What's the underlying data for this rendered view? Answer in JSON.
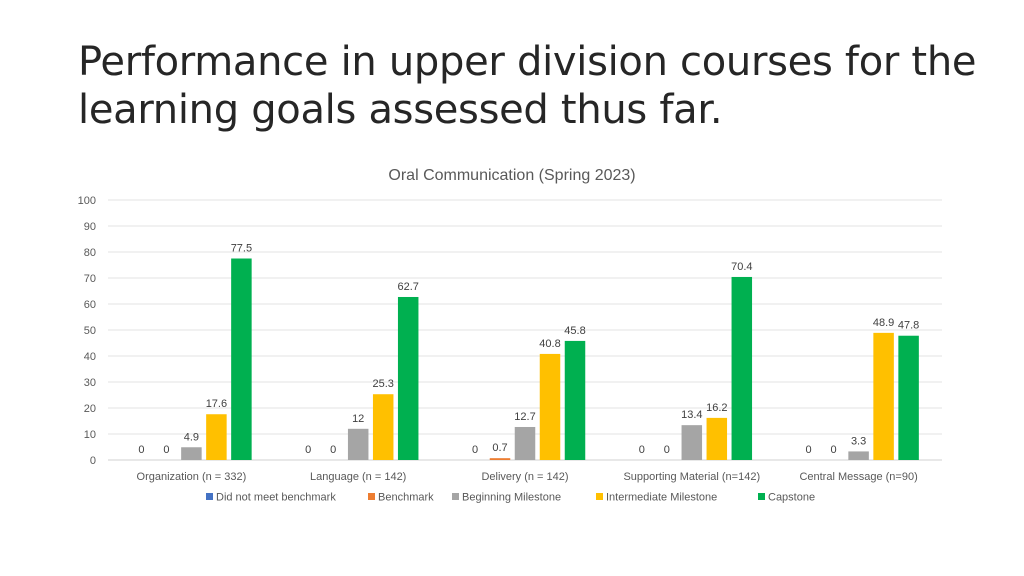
{
  "slide": {
    "title_line1": "Performance in upper division courses for the",
    "title_line2": "learning goals assessed thus far."
  },
  "chart_data": {
    "type": "bar",
    "title": "Oral Communication (Spring 2023)",
    "xlabel": "",
    "ylabel": "",
    "ylim": [
      0,
      100
    ],
    "yticks": [
      0,
      10,
      20,
      30,
      40,
      50,
      60,
      70,
      80,
      90,
      100
    ],
    "grid": true,
    "legend_position": "bottom",
    "categories": [
      "Organization (n = 332)",
      "Language (n = 142)",
      "Delivery (n = 142)",
      "Supporting Material (n=142)",
      "Central Message (n=90)"
    ],
    "series": [
      {
        "name": "Did not meet benchmark",
        "color": "#4472C4",
        "values": [
          0,
          0,
          0,
          0,
          0
        ],
        "labels": [
          "0",
          "0",
          "0",
          "0",
          "0"
        ]
      },
      {
        "name": "Benchmark",
        "color": "#ED7D31",
        "values": [
          0,
          0,
          0.7,
          0,
          0
        ],
        "labels": [
          "0",
          "0",
          "0.7",
          "0",
          "0"
        ]
      },
      {
        "name": "Beginning Milestone",
        "color": "#A5A5A5",
        "values": [
          4.9,
          12,
          12.7,
          13.4,
          3.3
        ],
        "labels": [
          "4.9",
          "12",
          "12.7",
          "13.4",
          "3.3"
        ]
      },
      {
        "name": "Intermediate Milestone",
        "color": "#FFC000",
        "values": [
          17.6,
          25.3,
          40.8,
          16.2,
          48.9
        ],
        "labels": [
          "17.6",
          "25.3",
          "40.8",
          "16.2",
          "48.9"
        ]
      },
      {
        "name": "Capstone",
        "color": "#00B050",
        "values": [
          77.5,
          62.7,
          45.8,
          70.4,
          47.8
        ],
        "labels": [
          "77.5",
          "62.7",
          "45.8",
          "70.4",
          "47.8"
        ]
      }
    ]
  }
}
